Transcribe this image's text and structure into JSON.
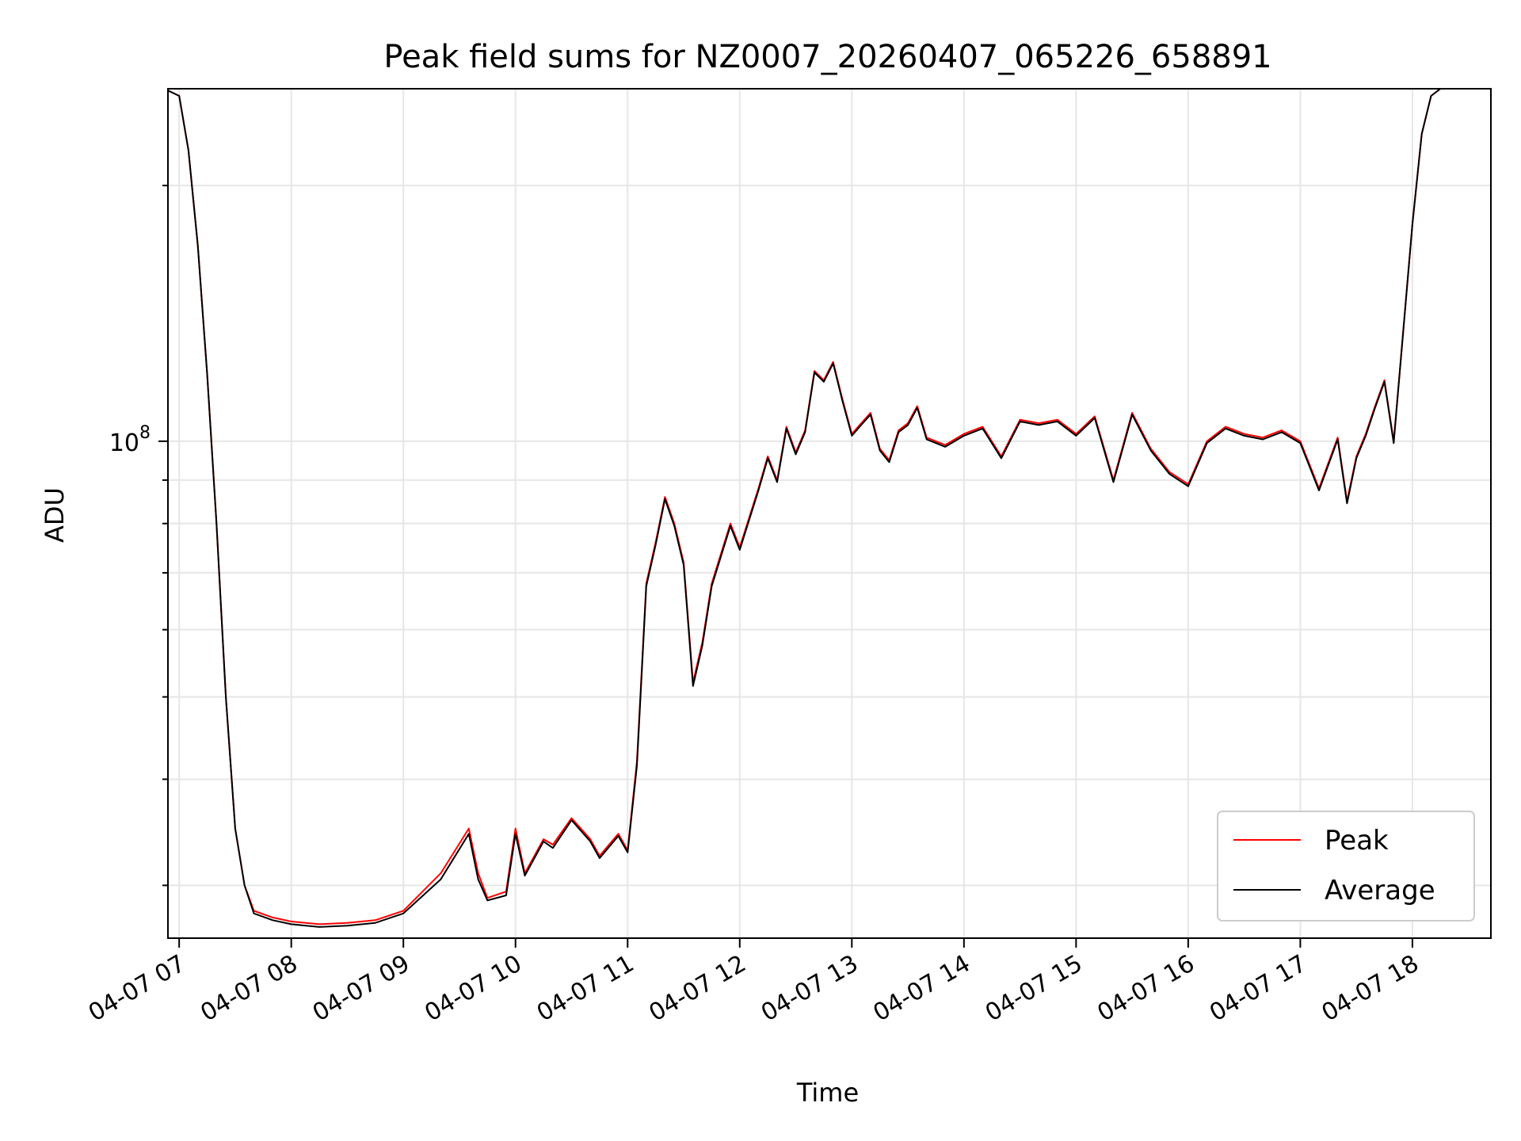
{
  "chart_data": {
    "type": "line",
    "title": "Peak field sums for NZ0007_20260407_065226_658891",
    "xlabel": "Time",
    "ylabel": "ADU",
    "yscale": "log",
    "grid": true,
    "legend_position": "lower-right",
    "xlim": [
      "04-07 06:54",
      "04-07 18:42"
    ],
    "ylim": [
      26000000,
      260000000
    ],
    "x_ticks": [
      "04-07 07",
      "04-07 08",
      "04-07 09",
      "04-07 10",
      "04-07 11",
      "04-07 12",
      "04-07 13",
      "04-07 14",
      "04-07 15",
      "04-07 16",
      "04-07 17",
      "04-07 18"
    ],
    "y_tick_labels": [
      {
        "value": 100000000,
        "base": "10",
        "exponent": "8"
      }
    ],
    "x": [
      "04-07 06:52",
      "04-07 07:00",
      "04-07 07:05",
      "04-07 07:10",
      "04-07 07:15",
      "04-07 07:20",
      "04-07 07:25",
      "04-07 07:30",
      "04-07 07:35",
      "04-07 07:40",
      "04-07 07:50",
      "04-07 08:00",
      "04-07 08:15",
      "04-07 08:30",
      "04-07 08:45",
      "04-07 09:00",
      "04-07 09:20",
      "04-07 09:35",
      "04-07 09:40",
      "04-07 09:45",
      "04-07 09:55",
      "04-07 10:00",
      "04-07 10:05",
      "04-07 10:15",
      "04-07 10:20",
      "04-07 10:30",
      "04-07 10:40",
      "04-07 10:45",
      "04-07 10:55",
      "04-07 11:00",
      "04-07 11:05",
      "04-07 11:10",
      "04-07 11:15",
      "04-07 11:20",
      "04-07 11:25",
      "04-07 11:30",
      "04-07 11:35",
      "04-07 11:40",
      "04-07 11:45",
      "04-07 11:55",
      "04-07 12:00",
      "04-07 12:10",
      "04-07 12:15",
      "04-07 12:20",
      "04-07 12:25",
      "04-07 12:30",
      "04-07 12:35",
      "04-07 12:40",
      "04-07 12:45",
      "04-07 12:50",
      "04-07 12:55",
      "04-07 13:00",
      "04-07 13:05",
      "04-07 13:10",
      "04-07 13:15",
      "04-07 13:20",
      "04-07 13:25",
      "04-07 13:30",
      "04-07 13:35",
      "04-07 13:40",
      "04-07 13:45",
      "04-07 13:50",
      "04-07 14:00",
      "04-07 14:10",
      "04-07 14:20",
      "04-07 14:30",
      "04-07 14:40",
      "04-07 14:50",
      "04-07 15:00",
      "04-07 15:10",
      "04-07 15:20",
      "04-07 15:30",
      "04-07 15:40",
      "04-07 15:50",
      "04-07 16:00",
      "04-07 16:10",
      "04-07 16:20",
      "04-07 16:30",
      "04-07 16:40",
      "04-07 16:50",
      "04-07 17:00",
      "04-07 17:10",
      "04-07 17:20",
      "04-07 17:25",
      "04-07 17:30",
      "04-07 17:35",
      "04-07 17:40",
      "04-07 17:45",
      "04-07 17:50",
      "04-07 18:00",
      "04-07 18:05",
      "04-07 18:10",
      "04-07 18:15",
      "04-07 18:20",
      "04-07 18:25",
      "04-07 18:30",
      "04-07 18:40"
    ],
    "series": [
      {
        "name": "Peak",
        "color": "#ff0000",
        "values": [
          260000000,
          255000000,
          220000000,
          170000000,
          120000000,
          80000000,
          50000000,
          35000000,
          30000000,
          28000000,
          27500000,
          27200000,
          27000000,
          27100000,
          27300000,
          28000000,
          31000000,
          35000000,
          31000000,
          29000000,
          29500000,
          35000000,
          31000000,
          34000000,
          33500000,
          36000000,
          34000000,
          32500000,
          34500000,
          33000000,
          42000000,
          68000000,
          76000000,
          86000000,
          80000000,
          72000000,
          52000000,
          58000000,
          68000000,
          80000000,
          75000000,
          88000000,
          96000000,
          90000000,
          104000000,
          97000000,
          103000000,
          121000000,
          118000000,
          124000000,
          112000000,
          102000000,
          105000000,
          108000000,
          98000000,
          95000000,
          103000000,
          105000000,
          110000000,
          101000000,
          100000000,
          99000000,
          102000000,
          104000000,
          96000000,
          106000000,
          105000000,
          106000000,
          102000000,
          107000000,
          90000000,
          108000000,
          98000000,
          92000000,
          89000000,
          100000000,
          104000000,
          102000000,
          101000000,
          103000000,
          100000000,
          88000000,
          101000000,
          85000000,
          96000000,
          102000000,
          110000000,
          118000000,
          100000000,
          180000000,
          230000000,
          255000000,
          260000000,
          260000000,
          260000000,
          260000000,
          260000000
        ]
      },
      {
        "name": "Average",
        "color": "#000000",
        "values": [
          260000000,
          255000000,
          220000000,
          170000000,
          120000000,
          80000000,
          50000000,
          35000000,
          30000000,
          27800000,
          27300000,
          27000000,
          26800000,
          26900000,
          27100000,
          27800000,
          30500000,
          34500000,
          30500000,
          28800000,
          29200000,
          34500000,
          30800000,
          33800000,
          33200000,
          35800000,
          33800000,
          32300000,
          34300000,
          32800000,
          41500000,
          67500000,
          75500000,
          85500000,
          79500000,
          71500000,
          51500000,
          57500000,
          67500000,
          79500000,
          74500000,
          87500000,
          95500000,
          89500000,
          103500000,
          96500000,
          102500000,
          120500000,
          117500000,
          123500000,
          111500000,
          101500000,
          104500000,
          107500000,
          97500000,
          94500000,
          102500000,
          104500000,
          109500000,
          100500000,
          99500000,
          98500000,
          101500000,
          103500000,
          95500000,
          105500000,
          104500000,
          105500000,
          101500000,
          106500000,
          89500000,
          107500000,
          97500000,
          91500000,
          88500000,
          99500000,
          103500000,
          101500000,
          100500000,
          102500000,
          99500000,
          87500000,
          100500000,
          84500000,
          95500000,
          101500000,
          109500000,
          117500000,
          99500000,
          180000000,
          230000000,
          255000000,
          260000000,
          260000000,
          260000000,
          260000000,
          260000000
        ]
      }
    ]
  }
}
